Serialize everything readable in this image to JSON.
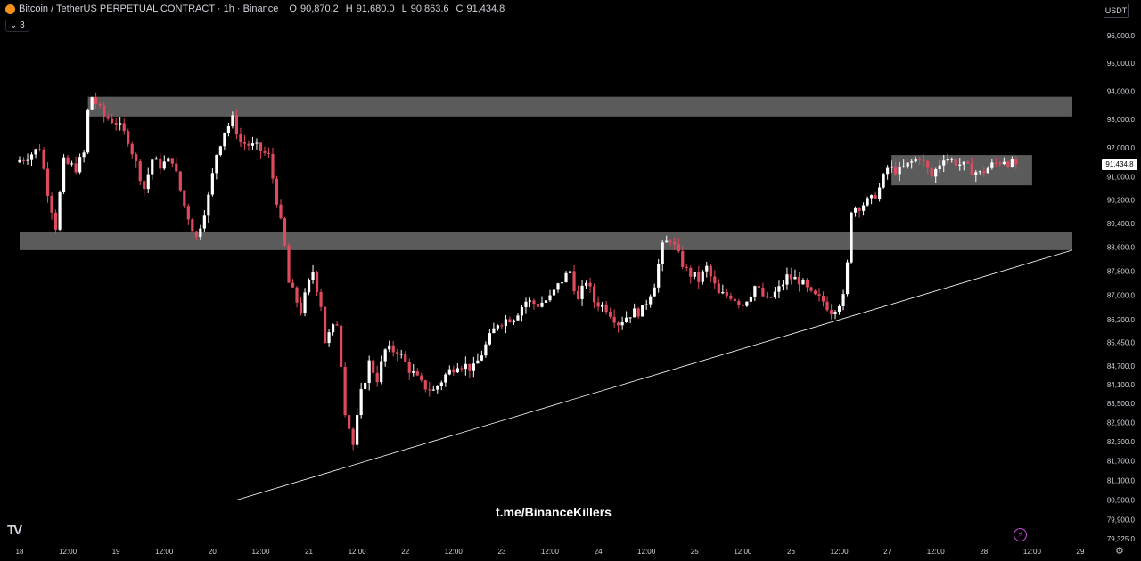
{
  "header": {
    "title": "Bitcoin / TetherUS PERPETUAL CONTRACT · 1h · Binance",
    "ohlc": [
      {
        "label": "O",
        "value": "90,870.2"
      },
      {
        "label": "H",
        "value": "91,680.0"
      },
      {
        "label": "L",
        "value": "90,863.6"
      },
      {
        "label": "C",
        "value": "91,434.8"
      }
    ],
    "indicators_toggle": "⌄ 3"
  },
  "currency_button": "USDT",
  "last_price_label": "91,434.8",
  "watermark": "t.me/BinanceKillers",
  "logo_text": "TV",
  "icons": {
    "symbol": "bitcoin-icon",
    "bolt": "bolt-icon",
    "settings": "settings-icon"
  },
  "colors": {
    "up": "#ffffff",
    "down": "#e04a5e",
    "zone": "#7a7a7a",
    "trendline": "#ffffff",
    "background": "#000000"
  },
  "chart_data": {
    "type": "candlestick",
    "ylim": [
      79325,
      96000
    ],
    "y_scale": "log",
    "y_ticks": [
      {
        "v": 96000,
        "label": "96,000.0"
      },
      {
        "v": 95000,
        "label": "95,000.0"
      },
      {
        "v": 94000,
        "label": "94,000.0"
      },
      {
        "v": 93000,
        "label": "93,000.0"
      },
      {
        "v": 92000,
        "label": "92,000.0"
      },
      {
        "v": 91000,
        "label": "91,000.0"
      },
      {
        "v": 90200,
        "label": "90,200.0"
      },
      {
        "v": 89400,
        "label": "89,400.0"
      },
      {
        "v": 88600,
        "label": "88,600.0"
      },
      {
        "v": 87800,
        "label": "87,800.0"
      },
      {
        "v": 87000,
        "label": "87,000.0"
      },
      {
        "v": 86200,
        "label": "86,200.0"
      },
      {
        "v": 85450,
        "label": "85,450.0"
      },
      {
        "v": 84700,
        "label": "84,700.0"
      },
      {
        "v": 84100,
        "label": "84,100.0"
      },
      {
        "v": 83500,
        "label": "83,500.0"
      },
      {
        "v": 82900,
        "label": "82,900.0"
      },
      {
        "v": 82300,
        "label": "82,300.0"
      },
      {
        "v": 81700,
        "label": "81,700.0"
      },
      {
        "v": 81100,
        "label": "81,100.0"
      },
      {
        "v": 80500,
        "label": "80,500.0"
      },
      {
        "v": 79900,
        "label": "79,900.0"
      },
      {
        "v": 79325,
        "label": "79,325.0"
      }
    ],
    "x_ticks": [
      "18",
      "12:00",
      "19",
      "12:00",
      "20",
      "12:00",
      "21",
      "12:00",
      "22",
      "12:00",
      "23",
      "12:00",
      "24",
      "12:00",
      "25",
      "12:00",
      "26",
      "12:00",
      "27",
      "12:00",
      "28",
      "12:00",
      "29"
    ],
    "x_range_hours": [
      0,
      264
    ],
    "zones": [
      {
        "name": "resistance-zone",
        "x_hours": [
          17,
          262
        ],
        "price": [
          93100,
          93800
        ]
      },
      {
        "name": "support-zone",
        "x_hours": [
          0,
          262
        ],
        "price": [
          88500,
          89100
        ]
      },
      {
        "name": "range-zone",
        "x_hours": [
          217,
          252
        ],
        "price": [
          90700,
          91750
        ]
      }
    ],
    "trendline": {
      "x_hours": [
        54,
        262
      ],
      "price": [
        80500,
        88500
      ]
    },
    "anchors": [
      [
        0,
        91500
      ],
      [
        4,
        91800
      ],
      [
        6,
        92000
      ],
      [
        8,
        90500
      ],
      [
        10,
        89300
      ],
      [
        12,
        91500
      ],
      [
        15,
        91300
      ],
      [
        17,
        91800
      ],
      [
        18,
        93300
      ],
      [
        19,
        93800
      ],
      [
        22,
        93100
      ],
      [
        25,
        92900
      ],
      [
        28,
        92300
      ],
      [
        32,
        90600
      ],
      [
        34,
        91600
      ],
      [
        36,
        91400
      ],
      [
        39,
        91600
      ],
      [
        42,
        90000
      ],
      [
        45,
        88900
      ],
      [
        48,
        90300
      ],
      [
        50,
        91800
      ],
      [
        52,
        92600
      ],
      [
        54,
        93000
      ],
      [
        56,
        92200
      ],
      [
        60,
        92000
      ],
      [
        63,
        91700
      ],
      [
        65,
        90200
      ],
      [
        67,
        88600
      ],
      [
        68,
        87400
      ],
      [
        71,
        86500
      ],
      [
        73,
        87400
      ],
      [
        74,
        87800
      ],
      [
        76,
        86700
      ],
      [
        77,
        85500
      ],
      [
        80,
        86100
      ],
      [
        81,
        84800
      ],
      [
        82,
        83300
      ],
      [
        84,
        82200
      ],
      [
        86,
        83800
      ],
      [
        88,
        84800
      ],
      [
        90,
        84300
      ],
      [
        92,
        85200
      ],
      [
        95,
        85200
      ],
      [
        98,
        84600
      ],
      [
        101,
        84100
      ],
      [
        104,
        83900
      ],
      [
        107,
        84400
      ],
      [
        110,
        84800
      ],
      [
        114,
        84600
      ],
      [
        118,
        85600
      ],
      [
        120,
        86100
      ],
      [
        124,
        86300
      ],
      [
        127,
        86800
      ],
      [
        130,
        86700
      ],
      [
        133,
        86900
      ],
      [
        136,
        87500
      ],
      [
        138,
        87800
      ],
      [
        140,
        86800
      ],
      [
        142,
        87500
      ],
      [
        144,
        86800
      ],
      [
        147,
        86600
      ],
      [
        150,
        86100
      ],
      [
        153,
        86400
      ],
      [
        156,
        86500
      ],
      [
        159,
        87400
      ],
      [
        161,
        88600
      ],
      [
        163,
        88900
      ],
      [
        165,
        88300
      ],
      [
        167,
        87800
      ],
      [
        170,
        87500
      ],
      [
        172,
        87900
      ],
      [
        175,
        87000
      ],
      [
        178,
        87000
      ],
      [
        181,
        86700
      ],
      [
        184,
        87300
      ],
      [
        187,
        86800
      ],
      [
        190,
        87200
      ],
      [
        192,
        87600
      ],
      [
        195,
        87500
      ],
      [
        198,
        87000
      ],
      [
        201,
        86800
      ],
      [
        203,
        86500
      ],
      [
        206,
        86900
      ],
      [
        207,
        88000
      ],
      [
        208,
        89900
      ],
      [
        210,
        90000
      ],
      [
        213,
        90200
      ],
      [
        215,
        90600
      ],
      [
        217,
        91300
      ],
      [
        220,
        91200
      ],
      [
        223,
        91500
      ],
      [
        225,
        91700
      ],
      [
        228,
        91000
      ],
      [
        231,
        91700
      ],
      [
        234,
        91500
      ],
      [
        237,
        91300
      ],
      [
        240,
        91100
      ],
      [
        243,
        91400
      ],
      [
        246,
        91600
      ],
      [
        248,
        91434.8
      ]
    ]
  }
}
